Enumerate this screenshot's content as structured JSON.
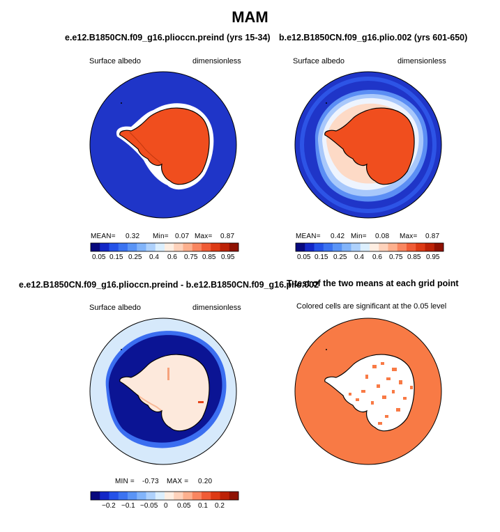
{
  "title": "MAM",
  "panels": [
    {
      "id": "p1",
      "title": "e.e12.B1850CN.f09_g16.plioccn.preind (yrs 15-34)",
      "variable": "Surface albedo",
      "units": "dimensionless",
      "stats": {
        "mean_label": "MEAN=",
        "mean": "0.32",
        "min_label": "Min=",
        "min": "0.07",
        "max_label": "Max=",
        "max": "0.87"
      },
      "colorbar": {
        "colors": [
          "#08097e",
          "#1327c7",
          "#2452e8",
          "#3b73f1",
          "#5a94f6",
          "#82b4fa",
          "#aed1fc",
          "#dceffe",
          "#feeee2",
          "#fed2bb",
          "#fdb08e",
          "#f98660",
          "#f05c36",
          "#dd3a15",
          "#bd2207",
          "#8f1102"
        ],
        "ticks": [
          "0.05",
          "0.15",
          "0.25",
          "0.4",
          "0.6",
          "0.75",
          "0.85",
          "0.95"
        ]
      }
    },
    {
      "id": "p2",
      "title": "b.e12.B1850CN.f09_g16.plio.002 (yrs 601-650)",
      "variable": "Surface albedo",
      "units": "dimensionless",
      "stats": {
        "mean_label": "MEAN=",
        "mean": "0.42",
        "min_label": "Min=",
        "min": "0.08",
        "max_label": "Max=",
        "max": "0.87"
      },
      "colorbar": {
        "colors": [
          "#08097e",
          "#1327c7",
          "#2452e8",
          "#3b73f1",
          "#5a94f6",
          "#82b4fa",
          "#aed1fc",
          "#dceffe",
          "#feeee2",
          "#fed2bb",
          "#fdb08e",
          "#f98660",
          "#f05c36",
          "#dd3a15",
          "#bd2207",
          "#8f1102"
        ],
        "ticks": [
          "0.05",
          "0.15",
          "0.25",
          "0.4",
          "0.6",
          "0.75",
          "0.85",
          "0.95"
        ]
      }
    },
    {
      "id": "p3",
      "title": "e.e12.B1850CN.f09_g16.plioccn.preind - b.e12.B1850CN.f09_g16.plio.002",
      "variable": "Surface albedo",
      "units": "dimensionless",
      "stats": {
        "min_label": "MIN =",
        "min": "-0.73",
        "max_label": "MAX =",
        "max": "0.20"
      },
      "colorbar": {
        "colors": [
          "#08097e",
          "#1327c7",
          "#2452e8",
          "#3b73f1",
          "#5a94f6",
          "#82b4fa",
          "#aed1fc",
          "#dceffe",
          "#feeee2",
          "#fed2bb",
          "#fdb08e",
          "#f98660",
          "#f05c36",
          "#dd3a15",
          "#bd2207",
          "#8f1102"
        ],
        "ticks": [
          "−0.2",
          "−0.1",
          "−0.05",
          "0",
          "0.05",
          "0.1",
          "0.2"
        ]
      }
    },
    {
      "id": "p4",
      "title": "T-test of the two means at each grid point",
      "subtitle": "Colored cells are significant at the 0.05 level"
    }
  ],
  "colors": {
    "ocean_blue": "#1f35c8",
    "antarctica_orange": "#f04e1e",
    "diff_background": "#d6e9fb",
    "diff_ocean_deep": "#0b1494",
    "significance_orange": "#f87a45"
  }
}
